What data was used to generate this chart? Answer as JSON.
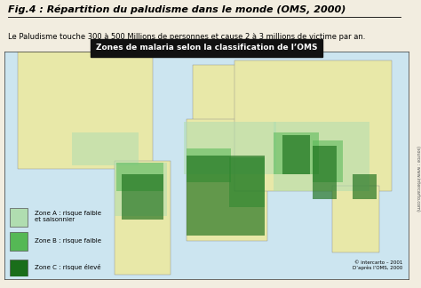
{
  "title_bold": "Fig.4 : Répartition du paludisme dans le monde (OMS, 2000)",
  "subtitle": "Le Paludisme touche 300 à 500 Millions de personnes et cause 2 à 3 millions de victime par an.",
  "map_title": "Zones de malaria selon la classification de l’OMS",
  "legend_items": [
    {
      "label": "Zone A : risque faible\net saisonnier",
      "color": "#b0ddb0"
    },
    {
      "label": "Zone B : risque faible",
      "color": "#55b855"
    },
    {
      "label": "Zone C : risque élevé",
      "color": "#1a6e1a"
    }
  ],
  "credit1": "© intercarto – 2001",
  "credit2": "D’après l’OMS, 2000",
  "source_text": "(source : www.intercarto.com)",
  "bg_color": "#f2ede0",
  "map_bg_color": "#cce5f0",
  "map_header_bg": "#111111",
  "map_header_fg": "#ffffff",
  "border_color": "#888888",
  "zone_a_color": "#b0ddb0",
  "zone_b_color": "#55b855",
  "zone_c_color": "#1a6e1a",
  "land_color": "#e8e8a8",
  "figsize": [
    4.74,
    3.24
  ],
  "dpi": 100
}
